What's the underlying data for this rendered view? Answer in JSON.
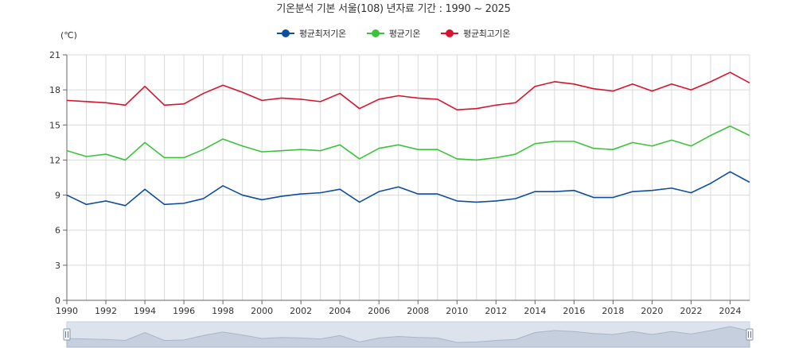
{
  "title": "기온분석 기본 서울(108) 년자료 기간 : 1990 ~ 2025",
  "unit_label": "(℃)",
  "legend": [
    {
      "label": "평균최저기온",
      "color": "#0d4f9e"
    },
    {
      "label": "평균기온",
      "color": "#3cc33c"
    },
    {
      "label": "평균최고기온",
      "color": "#d8132e"
    }
  ],
  "chart_data": {
    "type": "line",
    "title": "기온분석 기본 서울(108) 년자료 기간 : 1990 ~ 2025",
    "xlabel": "",
    "ylabel": "(℃)",
    "ylim": [
      0,
      21
    ],
    "yticks": [
      0,
      3,
      6,
      9,
      12,
      15,
      18,
      21
    ],
    "xlim": [
      1990,
      2025
    ],
    "xticks": [
      1990,
      1992,
      1994,
      1996,
      1998,
      2000,
      2002,
      2004,
      2006,
      2008,
      2010,
      2012,
      2014,
      2016,
      2018,
      2020,
      2022,
      2024
    ],
    "grid": true,
    "legend_position": "top-center",
    "x": [
      1990,
      1991,
      1992,
      1993,
      1994,
      1995,
      1996,
      1997,
      1998,
      1999,
      2000,
      2001,
      2002,
      2003,
      2004,
      2005,
      2006,
      2007,
      2008,
      2009,
      2010,
      2011,
      2012,
      2013,
      2014,
      2015,
      2016,
      2017,
      2018,
      2019,
      2020,
      2021,
      2022,
      2023,
      2024,
      2025
    ],
    "series": [
      {
        "name": "평균최저기온",
        "color": "#0d4f9e",
        "values": [
          9.0,
          8.2,
          8.5,
          8.1,
          9.5,
          8.2,
          8.3,
          8.7,
          9.8,
          9.0,
          8.6,
          8.9,
          9.1,
          9.2,
          9.5,
          8.4,
          9.3,
          9.7,
          9.1,
          9.1,
          8.5,
          8.4,
          8.5,
          8.7,
          9.3,
          9.3,
          9.4,
          8.8,
          8.8,
          9.3,
          9.4,
          9.6,
          9.2,
          10.0,
          11.0,
          10.1
        ]
      },
      {
        "name": "평균기온",
        "color": "#3cc33c",
        "values": [
          12.8,
          12.3,
          12.5,
          12.0,
          13.5,
          12.2,
          12.2,
          12.9,
          13.8,
          13.2,
          12.7,
          12.8,
          12.9,
          12.8,
          13.3,
          12.1,
          13.0,
          13.3,
          12.9,
          12.9,
          12.1,
          12.0,
          12.2,
          12.5,
          13.4,
          13.6,
          13.6,
          13.0,
          12.9,
          13.5,
          13.2,
          13.7,
          13.2,
          14.1,
          14.9,
          14.1
        ]
      },
      {
        "name": "평균최고기온",
        "color": "#d8132e",
        "values": [
          17.1,
          17.0,
          16.9,
          16.7,
          18.3,
          16.7,
          16.8,
          17.7,
          18.4,
          17.8,
          17.1,
          17.3,
          17.2,
          17.0,
          17.7,
          16.4,
          17.2,
          17.5,
          17.3,
          17.2,
          16.3,
          16.4,
          16.7,
          16.9,
          18.3,
          18.7,
          18.5,
          18.1,
          17.9,
          18.5,
          17.9,
          18.5,
          18.0,
          18.7,
          19.5,
          18.6
        ]
      }
    ]
  },
  "navigator": {
    "series_ref": "평균최고기온"
  }
}
